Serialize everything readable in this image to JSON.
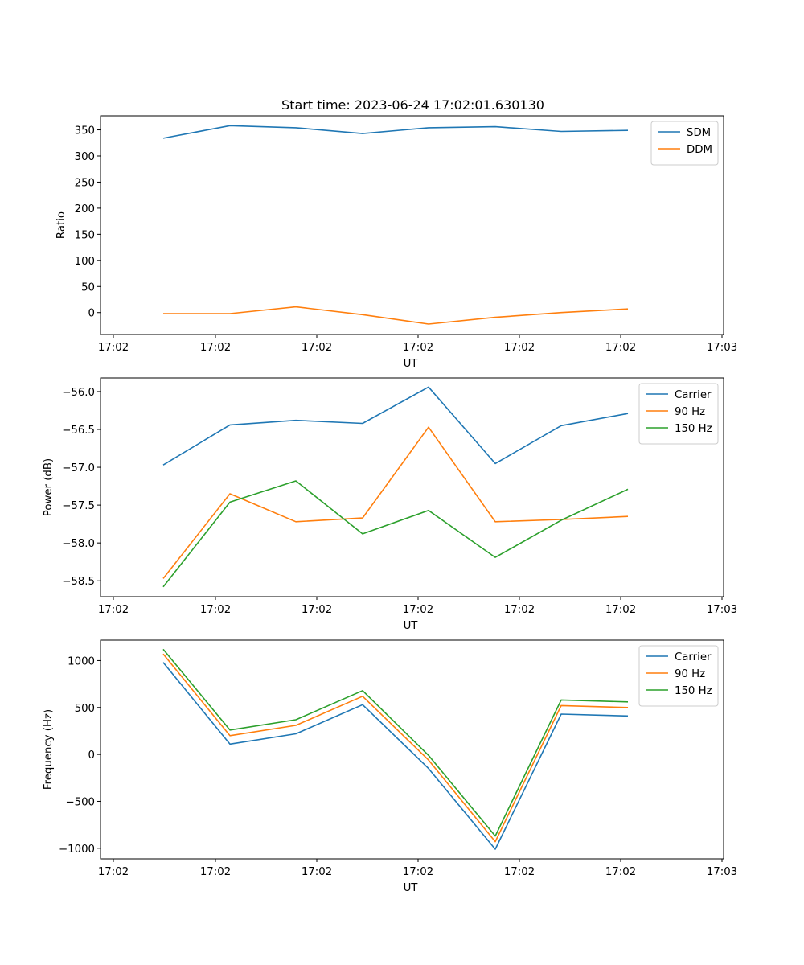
{
  "chart_data": [
    {
      "type": "line",
      "title": "Start time: 2023-06-24 17:02:01.630130",
      "xlabel": "UT",
      "ylabel": "Ratio",
      "x_tick_labels": [
        "17:02",
        "17:02",
        "17:02",
        "17:02",
        "17:02",
        "17:02",
        "17:03"
      ],
      "y_ticks": [
        0,
        50,
        100,
        150,
        200,
        250,
        300,
        350
      ],
      "ylim": [
        -42,
        377
      ],
      "legend_position": "upper right",
      "series": [
        {
          "name": "SDM",
          "color": "#1f77b4",
          "values": [
            334,
            358,
            354,
            343,
            354,
            356,
            347,
            349
          ]
        },
        {
          "name": "DDM",
          "color": "#ff7f0e",
          "values": [
            -2,
            -2,
            11,
            -4,
            -22,
            -9,
            0,
            7
          ]
        }
      ]
    },
    {
      "type": "line",
      "title": "",
      "xlabel": "UT",
      "ylabel": "Power (dB)",
      "x_tick_labels": [
        "17:02",
        "17:02",
        "17:02",
        "17:02",
        "17:02",
        "17:02",
        "17:03"
      ],
      "y_ticks": [
        -58.5,
        -58.0,
        -57.5,
        -57.0,
        -56.5,
        -56.0
      ],
      "y_tick_labels": [
        "−58.5",
        "−58.0",
        "−57.5",
        "−57.0",
        "−56.5",
        "−56.0"
      ],
      "ylim": [
        -58.71,
        -55.82
      ],
      "legend_position": "upper right",
      "series": [
        {
          "name": "Carrier",
          "color": "#1f77b4",
          "values": [
            -56.97,
            -56.44,
            -56.38,
            -56.42,
            -55.94,
            -56.95,
            -56.45,
            -56.29
          ]
        },
        {
          "name": "90 Hz",
          "color": "#ff7f0e",
          "values": [
            -58.47,
            -57.35,
            -57.72,
            -57.67,
            -56.47,
            -57.72,
            -57.69,
            -57.65
          ]
        },
        {
          "name": "150 Hz",
          "color": "#2ca02c",
          "values": [
            -58.58,
            -57.46,
            -57.18,
            -57.88,
            -57.57,
            -58.19,
            -57.7,
            -57.29
          ]
        }
      ]
    },
    {
      "type": "line",
      "title": "",
      "xlabel": "UT",
      "ylabel": "Frequency (Hz)",
      "x_tick_labels": [
        "17:02",
        "17:02",
        "17:02",
        "17:02",
        "17:02",
        "17:02",
        "17:03"
      ],
      "y_ticks": [
        -1000,
        -500,
        0,
        500,
        1000
      ],
      "y_tick_labels": [
        "−1000",
        "−500",
        "0",
        "500",
        "1000"
      ],
      "ylim": [
        -1113,
        1218
      ],
      "legend_position": "upper right",
      "series": [
        {
          "name": "Carrier",
          "color": "#1f77b4",
          "values": [
            980,
            110,
            220,
            530,
            -150,
            -1010,
            430,
            410
          ]
        },
        {
          "name": "90 Hz",
          "color": "#ff7f0e",
          "values": [
            1070,
            200,
            310,
            620,
            -60,
            -930,
            520,
            500
          ]
        },
        {
          "name": "150 Hz",
          "color": "#2ca02c",
          "values": [
            1120,
            260,
            370,
            680,
            -10,
            -870,
            580,
            560
          ]
        }
      ]
    }
  ]
}
